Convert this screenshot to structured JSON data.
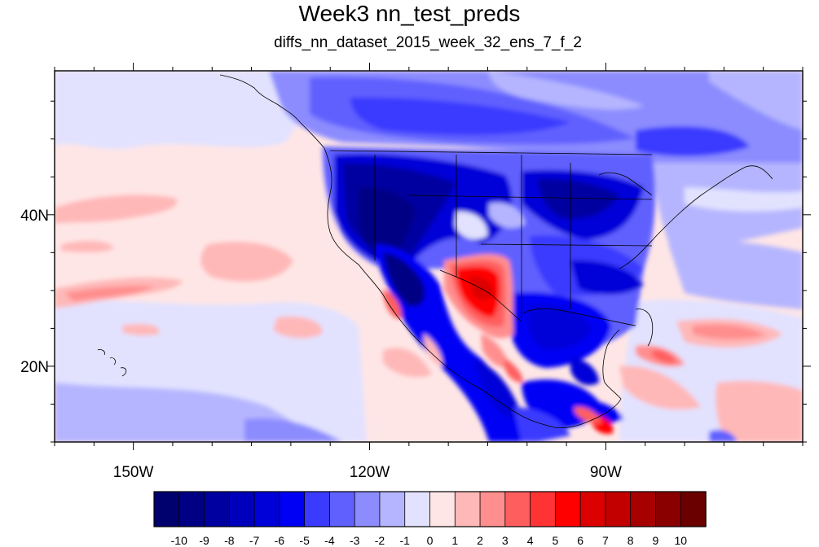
{
  "title": "Week3 nn_test_preds",
  "subtitle": "diffs_nn_dataset_2015_week_32_ens_7_f_2",
  "map": {
    "projection": "cylindrical equidistant",
    "lon_range": [
      -160,
      -65
    ],
    "lat_range": [
      10,
      59
    ],
    "x_ticks": [
      {
        "value": -150,
        "label": "150W"
      },
      {
        "value": -120,
        "label": "120W"
      },
      {
        "value": -90,
        "label": "90W"
      }
    ],
    "y_ticks": [
      {
        "value": 20,
        "label": "20N"
      },
      {
        "value": 40,
        "label": "40N"
      }
    ]
  },
  "colorbar": {
    "labels": [
      "-10",
      "-9",
      "-8",
      "-7",
      "-6",
      "-5",
      "-4",
      "-3",
      "-2",
      "-1",
      "0",
      "1",
      "2",
      "3",
      "4",
      "5",
      "6",
      "7",
      "8",
      "9",
      "10"
    ],
    "colors": [
      "#00006e",
      "#000084",
      "#0000a0",
      "#0000bc",
      "#0000d8",
      "#0000f4",
      "#3b3bff",
      "#6060ff",
      "#8c8cff",
      "#b5b5ff",
      "#e2e2ff",
      "#ffe6e6",
      "#ffb8b8",
      "#ff8e8e",
      "#ff5e5e",
      "#ff3333",
      "#ff0000",
      "#dc0000",
      "#c20000",
      "#a70000",
      "#8a0000",
      "#6a0000"
    ]
  }
}
